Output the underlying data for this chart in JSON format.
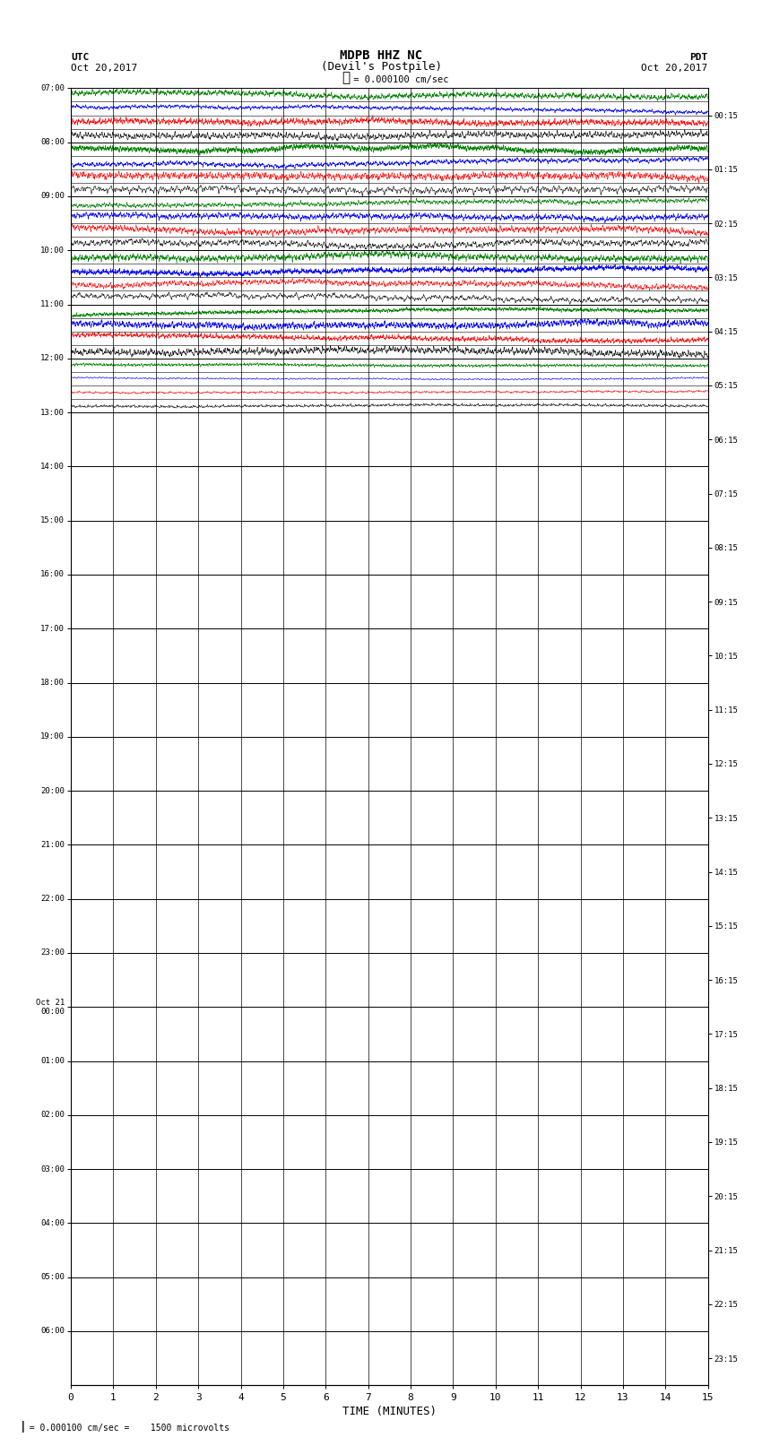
{
  "title_line1": "MDPB HHZ NC",
  "title_line2": "(Devil's Postpile)",
  "scale_text": " = 0.000100 cm/sec",
  "left_label": "UTC",
  "left_date": "Oct 20,2017",
  "right_label": "PDT",
  "right_date": "Oct 20,2017",
  "xlabel": "TIME (MINUTES)",
  "bottom_note": "= 0.000100 cm/sec =    1500 microvolts",
  "left_times_major": [
    "07:00",
    "08:00",
    "09:00",
    "10:00",
    "11:00",
    "12:00",
    "13:00",
    "14:00",
    "15:00",
    "16:00",
    "17:00",
    "18:00",
    "19:00",
    "20:00",
    "21:00",
    "22:00",
    "23:00",
    "Oct 21\n00:00",
    "01:00",
    "02:00",
    "03:00",
    "04:00",
    "05:00",
    "06:00"
  ],
  "right_times": [
    "00:15",
    "01:15",
    "02:15",
    "03:15",
    "04:15",
    "05:15",
    "06:15",
    "07:15",
    "08:15",
    "09:15",
    "10:15",
    "11:15",
    "12:15",
    "13:15",
    "14:15",
    "15:15",
    "16:15",
    "17:15",
    "18:15",
    "19:15",
    "20:15",
    "21:15",
    "22:15",
    "23:15"
  ],
  "num_rows": 24,
  "active_rows": 6,
  "sub_rows_per_hour": 4,
  "minutes": 15,
  "colors": [
    "black",
    "red",
    "blue",
    "green"
  ],
  "bg_color": "white",
  "fig_width": 8.5,
  "fig_height": 16.13,
  "dpi": 100
}
